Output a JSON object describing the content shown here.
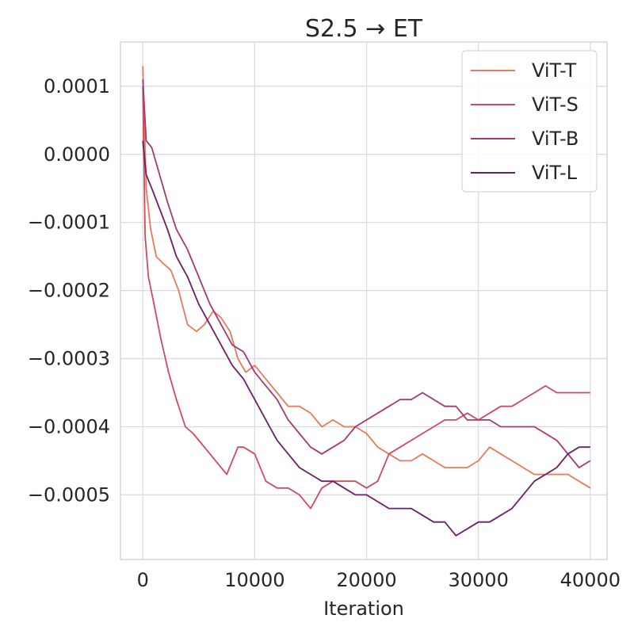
{
  "chart_data": {
    "type": "line",
    "title": "S2.5 → ET",
    "xlabel": "Iteration",
    "ylabel": "",
    "xlim": [
      -2000,
      41500
    ],
    "ylim": [
      -0.000595,
      0.000165
    ],
    "x_ticks": [
      0,
      10000,
      20000,
      30000,
      40000
    ],
    "x_tick_labels": [
      "0",
      "10000",
      "20000",
      "30000",
      "40000"
    ],
    "y_ticks": [
      0.0001,
      0.0,
      -0.0001,
      -0.0002,
      -0.0003,
      -0.0004,
      -0.0005
    ],
    "y_tick_labels": [
      "0.0001",
      "0.0000",
      "−0.0001",
      "−0.0002",
      "−0.0003",
      "−0.0004",
      "−0.0005"
    ],
    "grid": true,
    "legend_position": "top-right",
    "series": [
      {
        "name": "ViT-T",
        "color": "#e8795b",
        "x": [
          0,
          300,
          700,
          1200,
          1800,
          2500,
          3200,
          4000,
          4800,
          5500,
          6300,
          7000,
          7800,
          8500,
          9200,
          10000,
          11000,
          12000,
          13000,
          14000,
          15000,
          16000,
          17000,
          18000,
          19000,
          20000,
          21000,
          22000,
          23000,
          24000,
          25000,
          26000,
          27000,
          28000,
          29000,
          30000,
          31000,
          32000,
          33000,
          34000,
          35000,
          36000,
          37000,
          38000,
          39000,
          40000
        ],
        "values": [
          0.00013,
          -5e-05,
          -0.00011,
          -0.00015,
          -0.00016,
          -0.00017,
          -0.0002,
          -0.00025,
          -0.00026,
          -0.00025,
          -0.00023,
          -0.00024,
          -0.00026,
          -0.0003,
          -0.00032,
          -0.00031,
          -0.00033,
          -0.00035,
          -0.00037,
          -0.00037,
          -0.00038,
          -0.0004,
          -0.00039,
          -0.0004,
          -0.0004,
          -0.00041,
          -0.00043,
          -0.00044,
          -0.00045,
          -0.00045,
          -0.00044,
          -0.00045,
          -0.00046,
          -0.00046,
          -0.00046,
          -0.00045,
          -0.00043,
          -0.00044,
          -0.00045,
          -0.00046,
          -0.00047,
          -0.00047,
          -0.00047,
          -0.00047,
          -0.00048,
          -0.00049
        ]
      },
      {
        "name": "ViT-S",
        "color": "#d14a5c",
        "x": [
          0,
          200,
          500,
          1000,
          1600,
          2300,
          3000,
          3800,
          4500,
          5500,
          6500,
          7500,
          8500,
          9000,
          10000,
          11000,
          12000,
          13000,
          14000,
          15000,
          16000,
          17000,
          18000,
          19000,
          20000,
          21000,
          22000,
          23000,
          24000,
          25000,
          26000,
          27000,
          28000,
          29000,
          30000,
          31000,
          32000,
          33000,
          34000,
          35000,
          36000,
          37000,
          38000,
          39000,
          40000
        ],
        "values": [
          0.0001,
          -0.00012,
          -0.00018,
          -0.00022,
          -0.00027,
          -0.00032,
          -0.00036,
          -0.0004,
          -0.00041,
          -0.00043,
          -0.00045,
          -0.00047,
          -0.00043,
          -0.00043,
          -0.00044,
          -0.00048,
          -0.00049,
          -0.00049,
          -0.0005,
          -0.00052,
          -0.00049,
          -0.00048,
          -0.00048,
          -0.00048,
          -0.00049,
          -0.00048,
          -0.00044,
          -0.00043,
          -0.00042,
          -0.00041,
          -0.0004,
          -0.00039,
          -0.00039,
          -0.00038,
          -0.00039,
          -0.00038,
          -0.00037,
          -0.00037,
          -0.00036,
          -0.00035,
          -0.00034,
          -0.00035,
          -0.00035,
          -0.00035,
          -0.00035
        ]
      },
      {
        "name": "ViT-B",
        "color": "#a53a72",
        "x": [
          0,
          300,
          800,
          1500,
          2200,
          3000,
          4000,
          5000,
          6000,
          7000,
          8000,
          9000,
          10000,
          11000,
          12000,
          13000,
          14000,
          15000,
          16000,
          17000,
          18000,
          19000,
          20000,
          21000,
          22000,
          23000,
          24000,
          25000,
          26000,
          27000,
          28000,
          29000,
          30000,
          31000,
          32000,
          33000,
          34000,
          35000,
          36000,
          37000,
          38000,
          39000,
          40000
        ],
        "values": [
          0.00011,
          2e-05,
          1e-05,
          -3e-05,
          -7e-05,
          -0.00011,
          -0.00014,
          -0.00018,
          -0.00022,
          -0.00025,
          -0.00028,
          -0.00029,
          -0.00032,
          -0.00034,
          -0.00036,
          -0.00039,
          -0.00041,
          -0.00043,
          -0.00044,
          -0.00043,
          -0.00042,
          -0.0004,
          -0.00039,
          -0.00038,
          -0.00037,
          -0.00036,
          -0.00036,
          -0.00035,
          -0.00036,
          -0.00037,
          -0.00037,
          -0.00039,
          -0.00039,
          -0.00039,
          -0.0004,
          -0.0004,
          -0.0004,
          -0.0004,
          -0.00041,
          -0.00042,
          -0.00044,
          -0.00046,
          -0.00045
        ]
      },
      {
        "name": "ViT-L",
        "color": "#6a2068",
        "x": [
          0,
          300,
          800,
          1500,
          2200,
          3000,
          4000,
          5000,
          6000,
          7000,
          8000,
          9000,
          10000,
          11000,
          12000,
          13000,
          14000,
          15000,
          16000,
          17000,
          18000,
          19000,
          20000,
          21000,
          22000,
          23000,
          24000,
          25000,
          26000,
          27000,
          28000,
          29000,
          30000,
          31000,
          32000,
          33000,
          34000,
          35000,
          36000,
          37000,
          38000,
          39000,
          40000
        ],
        "values": [
          2e-05,
          -3e-05,
          -5e-05,
          -8e-05,
          -0.00011,
          -0.00015,
          -0.00018,
          -0.00022,
          -0.00025,
          -0.00028,
          -0.00031,
          -0.00033,
          -0.00036,
          -0.00039,
          -0.00042,
          -0.00044,
          -0.00046,
          -0.00047,
          -0.00048,
          -0.00048,
          -0.00049,
          -0.0005,
          -0.0005,
          -0.00051,
          -0.00052,
          -0.00052,
          -0.00052,
          -0.00053,
          -0.00054,
          -0.00054,
          -0.00056,
          -0.00055,
          -0.00054,
          -0.00054,
          -0.00053,
          -0.00052,
          -0.0005,
          -0.00048,
          -0.00047,
          -0.00046,
          -0.00044,
          -0.00043,
          -0.00043
        ]
      }
    ]
  }
}
